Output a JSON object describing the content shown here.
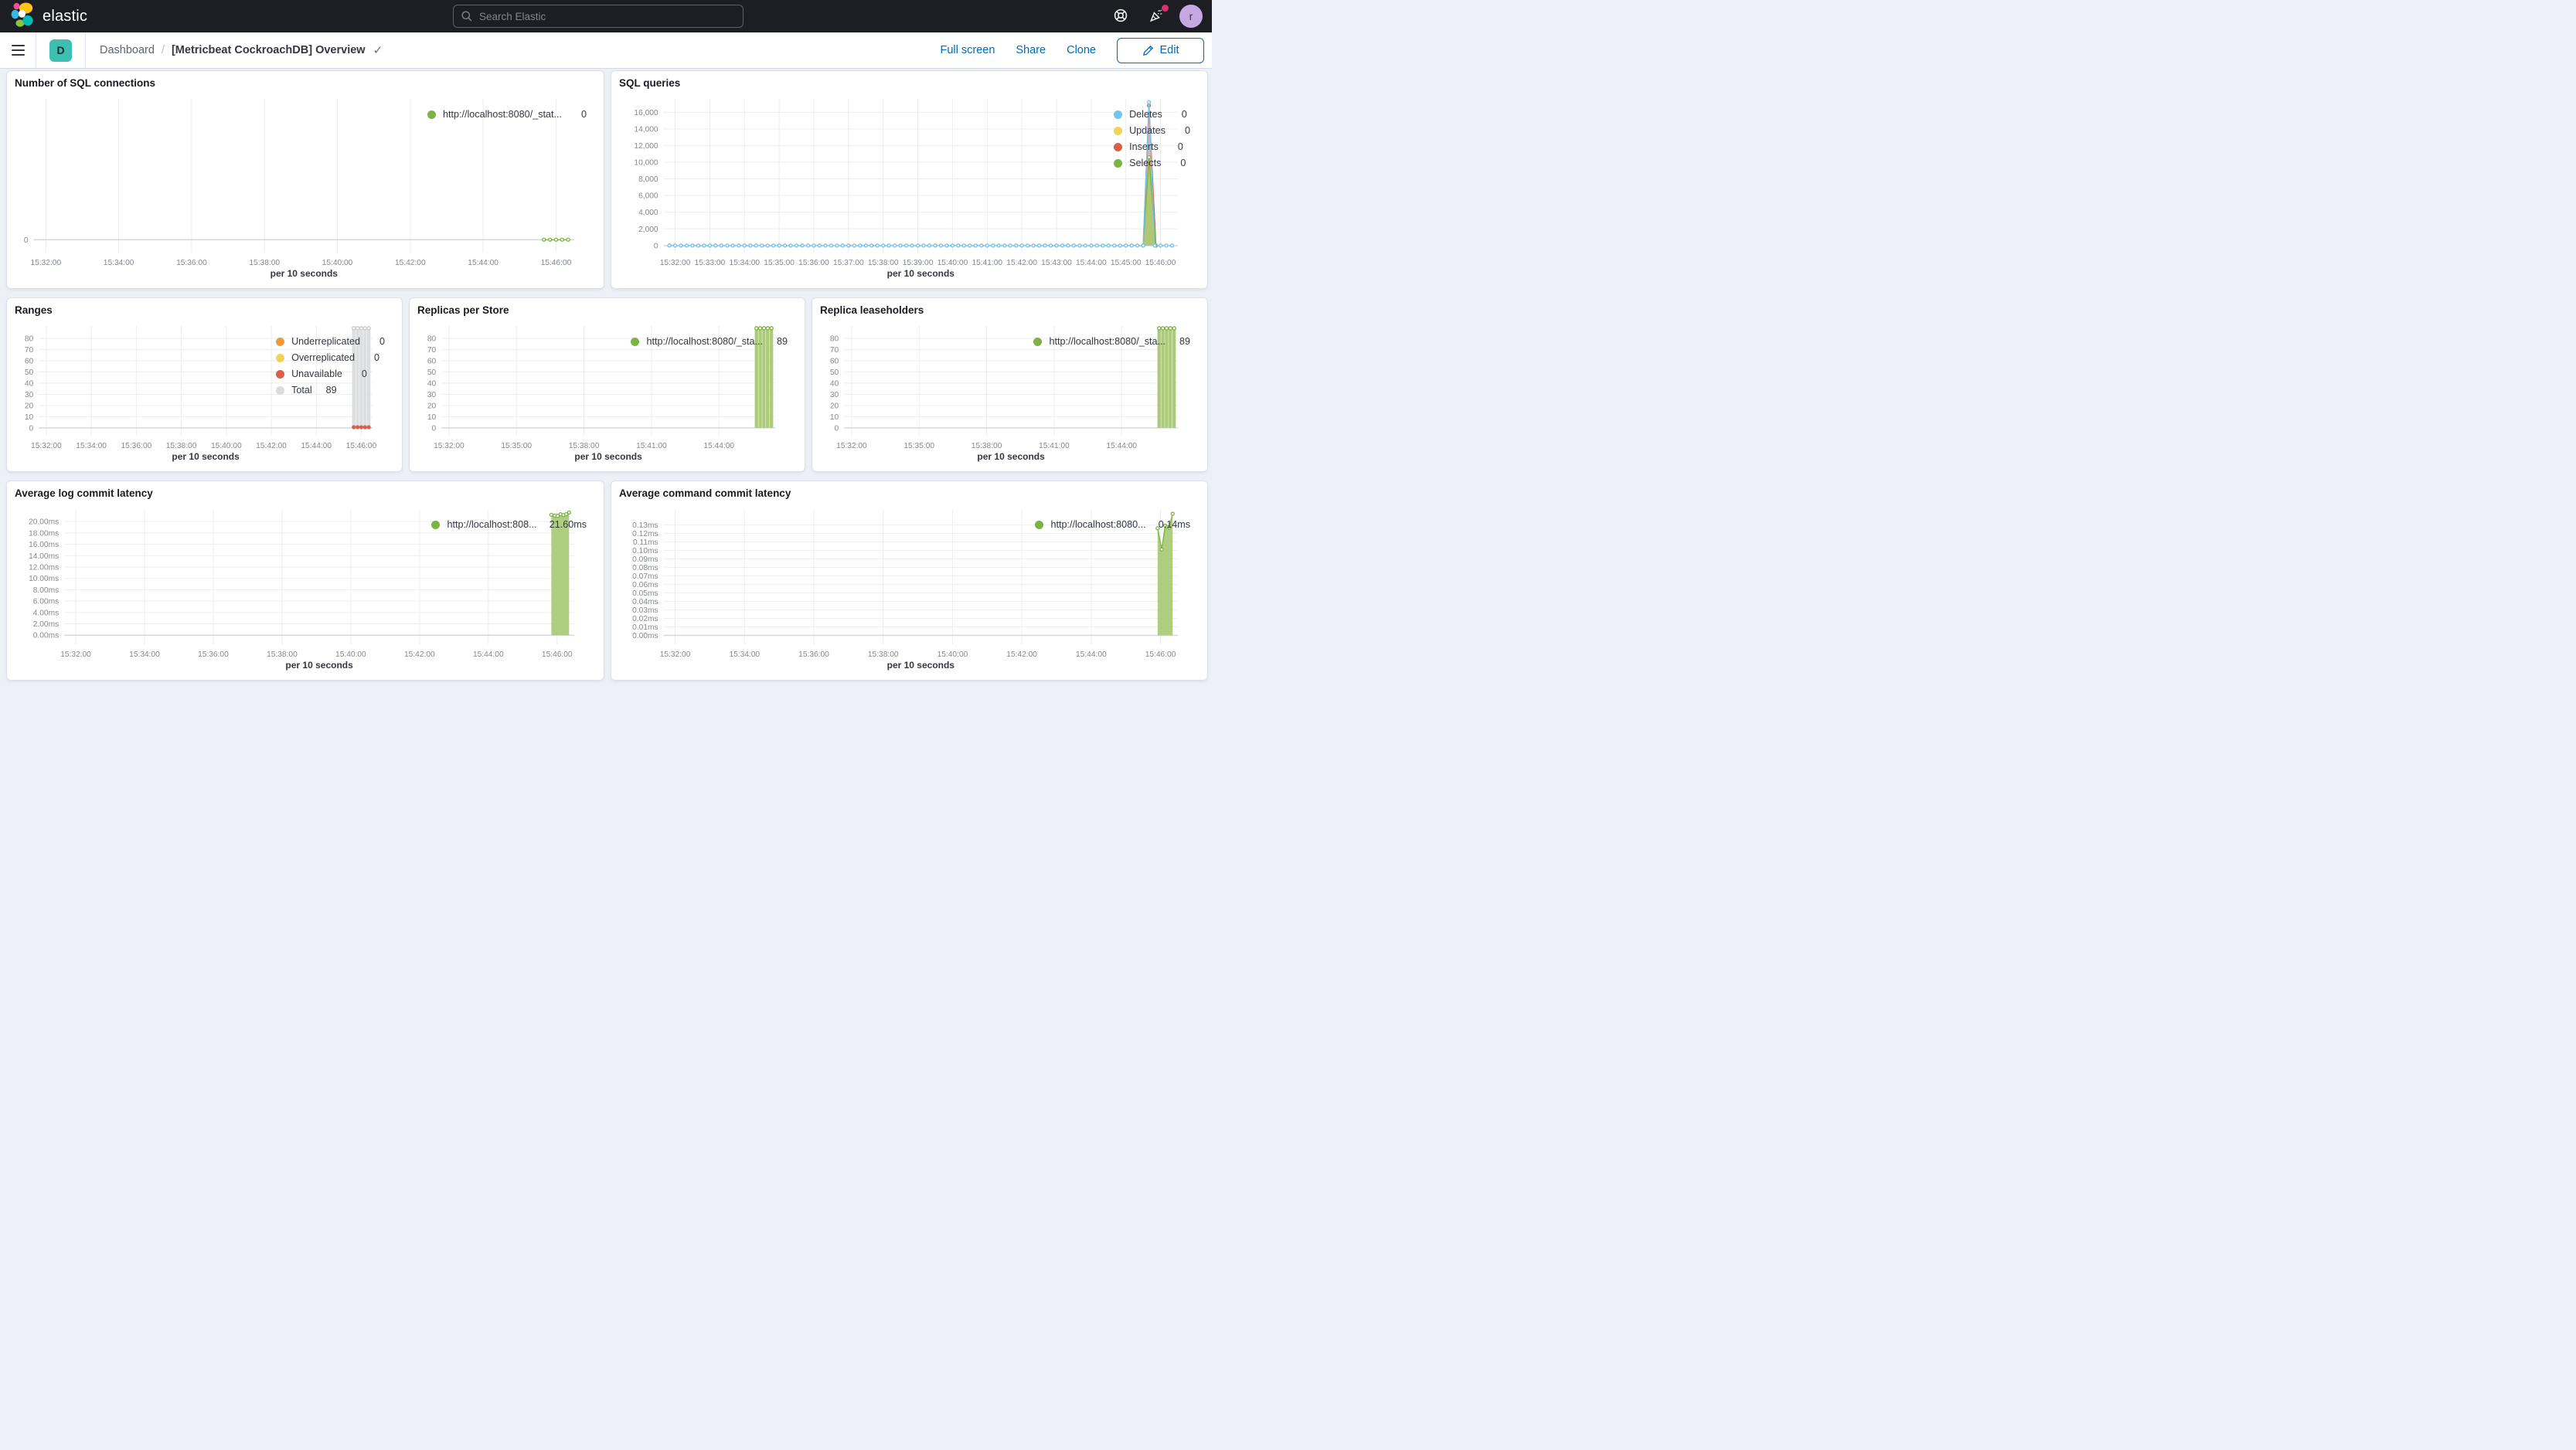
{
  "header": {
    "brand": "elastic",
    "search_placeholder": "Search Elastic"
  },
  "nav": {
    "space_badge": "D",
    "breadcrumb_root": "Dashboard",
    "breadcrumb_current": "[Metricbeat CockroachDB] Overview",
    "actions": {
      "full_screen": "Full screen",
      "share": "Share",
      "clone": "Clone",
      "edit": "Edit"
    }
  },
  "panels": [
    {
      "title": "Number of SQL connections",
      "xlabel": "per 10 seconds",
      "legend": [
        {
          "label": "http://localhost:8080/_stat...",
          "value": "0",
          "color": "#7DB342"
        }
      ],
      "chart": {
        "type": "line",
        "x_domain": [
          "15:31:40",
          "15:46:30"
        ],
        "x_ticks": [
          "15:32:00",
          "15:34:00",
          "15:36:00",
          "15:38:00",
          "15:40:00",
          "15:42:00",
          "15:44:00",
          "15:46:00"
        ],
        "y_domain": [
          -0.9,
          9.8
        ],
        "y_ticks": [
          {
            "v": 0,
            "label": "0"
          }
        ],
        "series": [
          {
            "name": "http://localhost:8080/_stat...",
            "type": "line",
            "color": "#7DB342",
            "markers": true,
            "points": [
              [
                "15:45:40",
                0
              ],
              [
                "15:45:50",
                0
              ],
              [
                "15:46:00",
                0
              ],
              [
                "15:46:10",
                0
              ],
              [
                "15:46:20",
                0
              ]
            ]
          }
        ]
      }
    },
    {
      "title": "SQL queries",
      "xlabel": "per 10 seconds",
      "legend": [
        {
          "label": "Deletes",
          "value": "0",
          "color": "#6DC5F0"
        },
        {
          "label": "Updates",
          "value": "0",
          "color": "#F1D35C"
        },
        {
          "label": "Inserts",
          "value": "0",
          "color": "#DB5E47"
        },
        {
          "label": "Selects",
          "value": "0",
          "color": "#7DB342"
        }
      ],
      "chart": {
        "type": "line",
        "x_domain": [
          "15:31:40",
          "15:46:30"
        ],
        "x_ticks": [
          "15:32:00",
          "15:33:00",
          "15:34:00",
          "15:35:00",
          "15:36:00",
          "15:37:00",
          "15:38:00",
          "15:39:00",
          "15:40:00",
          "15:41:00",
          "15:42:00",
          "15:43:00",
          "15:44:00",
          "15:45:00",
          "15:46:00"
        ],
        "y_domain": [
          -850,
          17600
        ],
        "y_ticks": [
          {
            "v": 0,
            "label": "0"
          },
          {
            "v": 2000,
            "label": "2,000"
          },
          {
            "v": 4000,
            "label": "4,000"
          },
          {
            "v": 6000,
            "label": "6,000"
          },
          {
            "v": 8000,
            "label": "8,000"
          },
          {
            "v": 10000,
            "label": "10,000"
          },
          {
            "v": 12000,
            "label": "12,000"
          },
          {
            "v": 14000,
            "label": "14,000"
          },
          {
            "v": 16000,
            "label": "16,000"
          }
        ],
        "series": [
          {
            "name": "Inserts",
            "type": "area",
            "color": "#DB5E47",
            "fill": "#DB5E47",
            "fill_opacity": 0.5,
            "markers": true,
            "points": [
              [
                "15:45:30",
                0
              ],
              [
                "15:45:40",
                16800
              ],
              [
                "15:45:52",
                0
              ]
            ]
          },
          {
            "name": "Selects",
            "type": "area",
            "color": "#7DB342",
            "fill": "#A9CB70",
            "fill_opacity": 0.9,
            "markers": true,
            "points": [
              [
                "15:45:30",
                0
              ],
              [
                "15:45:40",
                10600
              ],
              [
                "15:45:52",
                0
              ]
            ]
          },
          {
            "name": "Deletes",
            "type": "line",
            "color": "#6DC5F0",
            "markers": true,
            "flat": {
              "from": "15:31:50",
              "to": "15:46:20",
              "step": 10,
              "value": 0
            },
            "points": [
              [
                "15:45:40",
                17200
              ]
            ]
          }
        ]
      }
    },
    {
      "title": "Ranges",
      "xlabel": "per 10 seconds",
      "legend": [
        {
          "label": "Underreplicated",
          "value": "0",
          "color": "#EC9B3D"
        },
        {
          "label": "Overreplicated",
          "value": "0",
          "color": "#F1D35C"
        },
        {
          "label": "Unavailable",
          "value": "0",
          "color": "#DB5E47"
        },
        {
          "label": "Total",
          "value": "89",
          "color": "#D9DBDD"
        }
      ],
      "chart": {
        "type": "bar",
        "x_domain": [
          "15:31:40",
          "15:46:30"
        ],
        "x_ticks": [
          "15:32:00",
          "15:34:00",
          "15:36:00",
          "15:38:00",
          "15:40:00",
          "15:42:00",
          "15:44:00",
          "15:46:00"
        ],
        "y_domain": [
          -7,
          91
        ],
        "y_ticks": [
          {
            "v": 0,
            "label": "0"
          },
          {
            "v": 10,
            "label": "10"
          },
          {
            "v": 20,
            "label": "20"
          },
          {
            "v": 30,
            "label": "30"
          },
          {
            "v": 40,
            "label": "40"
          },
          {
            "v": 50,
            "label": "50"
          },
          {
            "v": 60,
            "label": "60"
          },
          {
            "v": 70,
            "label": "70"
          },
          {
            "v": 80,
            "label": "80"
          }
        ],
        "series": [
          {
            "name": "Total",
            "type": "bars",
            "color": "#c7c9cc",
            "fill": "#DCDEE0",
            "bar_seconds": 9,
            "markers": true,
            "points": [
              [
                "15:45:40",
                89
              ],
              [
                "15:45:50",
                89
              ],
              [
                "15:46:00",
                89
              ],
              [
                "15:46:10",
                89
              ],
              [
                "15:46:20",
                89
              ]
            ]
          },
          {
            "name": "Unavailable",
            "type": "dots",
            "color": "#DB5E47",
            "points": [
              [
                "15:45:40",
                0.6
              ],
              [
                "15:45:50",
                0.6
              ],
              [
                "15:46:00",
                0.6
              ],
              [
                "15:46:10",
                0.6
              ],
              [
                "15:46:20",
                0.6
              ]
            ]
          }
        ]
      }
    },
    {
      "title": "Replicas per Store",
      "xlabel": "per 10 seconds",
      "legend": [
        {
          "label": "http://localhost:8080/_sta...",
          "value": "89",
          "color": "#7DB342"
        }
      ],
      "chart": {
        "type": "bar",
        "x_domain": [
          "15:31:40",
          "15:46:30"
        ],
        "x_ticks": [
          "15:32:00",
          "15:35:00",
          "15:38:00",
          "15:41:00",
          "15:44:00"
        ],
        "y_domain": [
          -7,
          91
        ],
        "y_ticks": [
          {
            "v": 0,
            "label": "0"
          },
          {
            "v": 10,
            "label": "10"
          },
          {
            "v": 20,
            "label": "20"
          },
          {
            "v": 30,
            "label": "30"
          },
          {
            "v": 40,
            "label": "40"
          },
          {
            "v": 50,
            "label": "50"
          },
          {
            "v": 60,
            "label": "60"
          },
          {
            "v": 70,
            "label": "70"
          },
          {
            "v": 80,
            "label": "80"
          }
        ],
        "series": [
          {
            "name": "http://localhost:8080/_sta...",
            "type": "bars",
            "color": "#7DB342",
            "fill": "#ABCB79",
            "bar_seconds": 9,
            "markers": true,
            "points": [
              [
                "15:45:40",
                89
              ],
              [
                "15:45:50",
                89
              ],
              [
                "15:46:00",
                89
              ],
              [
                "15:46:10",
                89
              ],
              [
                "15:46:20",
                89
              ]
            ]
          }
        ]
      }
    },
    {
      "title": "Replica leaseholders",
      "xlabel": "per 10 seconds",
      "legend": [
        {
          "label": "http://localhost:8080/_sta...",
          "value": "89",
          "color": "#7DB342"
        }
      ],
      "chart": {
        "type": "bar",
        "x_domain": [
          "15:31:40",
          "15:46:30"
        ],
        "x_ticks": [
          "15:32:00",
          "15:35:00",
          "15:38:00",
          "15:41:00",
          "15:44:00"
        ],
        "y_domain": [
          -7,
          91
        ],
        "y_ticks": [
          {
            "v": 0,
            "label": "0"
          },
          {
            "v": 10,
            "label": "10"
          },
          {
            "v": 20,
            "label": "20"
          },
          {
            "v": 30,
            "label": "30"
          },
          {
            "v": 40,
            "label": "40"
          },
          {
            "v": 50,
            "label": "50"
          },
          {
            "v": 60,
            "label": "60"
          },
          {
            "v": 70,
            "label": "70"
          },
          {
            "v": 80,
            "label": "80"
          }
        ],
        "series": [
          {
            "name": "http://localhost:8080/_sta...",
            "type": "bars",
            "color": "#7DB342",
            "fill": "#ABCB79",
            "bar_seconds": 9,
            "markers": true,
            "points": [
              [
                "15:45:40",
                89
              ],
              [
                "15:45:50",
                89
              ],
              [
                "15:46:00",
                89
              ],
              [
                "15:46:10",
                89
              ],
              [
                "15:46:20",
                89
              ]
            ]
          }
        ]
      }
    },
    {
      "title": "Average log commit latency",
      "xlabel": "per 10 seconds",
      "legend": [
        {
          "label": "http://localhost:808...",
          "value": "21.60ms",
          "color": "#7DB342"
        }
      ],
      "chart": {
        "type": "area",
        "x_domain": [
          "15:31:40",
          "15:46:30"
        ],
        "x_ticks": [
          "15:32:00",
          "15:34:00",
          "15:36:00",
          "15:38:00",
          "15:40:00",
          "15:42:00",
          "15:44:00",
          "15:46:00"
        ],
        "y_domain": [
          -1.6,
          22.2
        ],
        "y_ticks": [
          {
            "v": 0,
            "label": "0.00ms"
          },
          {
            "v": 2,
            "label": "2.00ms"
          },
          {
            "v": 4,
            "label": "4.00ms"
          },
          {
            "v": 6,
            "label": "6.00ms"
          },
          {
            "v": 8,
            "label": "8.00ms"
          },
          {
            "v": 10,
            "label": "10.00ms"
          },
          {
            "v": 12,
            "label": "12.00ms"
          },
          {
            "v": 14,
            "label": "14.00ms"
          },
          {
            "v": 16,
            "label": "16.00ms"
          },
          {
            "v": 18,
            "label": "18.00ms"
          },
          {
            "v": 20,
            "label": "20.00ms"
          }
        ],
        "series": [
          {
            "name": "http://localhost:808...",
            "type": "area",
            "color": "#7DB342",
            "fill": "#ABCB79",
            "fill_opacity": 0.95,
            "markers": true,
            "points": [
              [
                "15:45:50",
                21.2
              ],
              [
                "15:45:56",
                21.05
              ],
              [
                "15:46:01",
                21.0
              ],
              [
                "15:46:06",
                21.3
              ],
              [
                "15:46:11",
                21.15
              ],
              [
                "15:46:16",
                21.3
              ],
              [
                "15:46:21",
                21.6
              ]
            ]
          }
        ]
      }
    },
    {
      "title": "Average command commit latency",
      "xlabel": "per 10 seconds",
      "legend": [
        {
          "label": "http://localhost:8080...",
          "value": "0.14ms",
          "color": "#7DB342"
        }
      ],
      "chart": {
        "type": "area",
        "x_domain": [
          "15:31:40",
          "15:46:30"
        ],
        "x_ticks": [
          "15:32:00",
          "15:34:00",
          "15:36:00",
          "15:38:00",
          "15:40:00",
          "15:42:00",
          "15:44:00",
          "15:46:00"
        ],
        "y_domain": [
          -0.0105,
          0.1485
        ],
        "y_ticks": [
          {
            "v": 0,
            "label": "0.00ms"
          },
          {
            "v": 0.01,
            "label": "0.01ms"
          },
          {
            "v": 0.02,
            "label": "0.02ms"
          },
          {
            "v": 0.03,
            "label": "0.03ms"
          },
          {
            "v": 0.04,
            "label": "0.04ms"
          },
          {
            "v": 0.05,
            "label": "0.05ms"
          },
          {
            "v": 0.06,
            "label": "0.06ms"
          },
          {
            "v": 0.07,
            "label": "0.07ms"
          },
          {
            "v": 0.08,
            "label": "0.08ms"
          },
          {
            "v": 0.09,
            "label": "0.09ms"
          },
          {
            "v": 0.1,
            "label": "0.10ms"
          },
          {
            "v": 0.11,
            "label": "0.11ms"
          },
          {
            "v": 0.12,
            "label": "0.12ms"
          },
          {
            "v": 0.13,
            "label": "0.13ms"
          }
        ],
        "series": [
          {
            "name": "http://localhost:8080...",
            "type": "area",
            "color": "#7DB342",
            "fill": "#ABCB79",
            "fill_opacity": 0.95,
            "markers": true,
            "points": [
              [
                "15:45:55",
                0.126
              ],
              [
                "15:46:02",
                0.101
              ],
              [
                "15:46:08",
                0.129
              ],
              [
                "15:46:12",
                0.1275
              ],
              [
                "15:46:15",
                0.127
              ],
              [
                "15:46:21",
                0.143
              ]
            ]
          }
        ]
      }
    }
  ]
}
